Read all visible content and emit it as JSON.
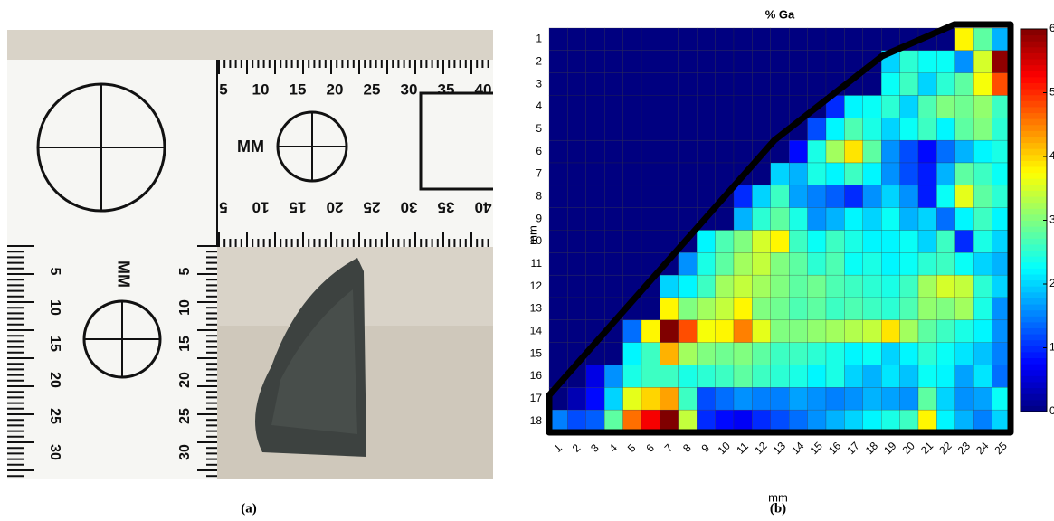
{
  "photo": {
    "top_scale": [
      "5",
      "10",
      "15",
      "20",
      "25",
      "30",
      "35",
      "40"
    ],
    "bottom_scale": [
      "5",
      "10",
      "15",
      "20",
      "25",
      "30",
      "35",
      "40"
    ],
    "left_scale": [
      "5",
      "10",
      "15",
      "20",
      "25",
      "30"
    ],
    "unit_labels": [
      "MM",
      "MM"
    ]
  },
  "chart_data": {
    "type": "heatmap",
    "title": "% Ga",
    "xlabel": "mm",
    "ylabel": "mm",
    "x": [
      1,
      2,
      3,
      4,
      5,
      6,
      7,
      8,
      9,
      10,
      11,
      12,
      13,
      14,
      15,
      16,
      17,
      18,
      19,
      20,
      21,
      22,
      23,
      24,
      25
    ],
    "y": [
      1,
      2,
      3,
      4,
      5,
      6,
      7,
      8,
      9,
      10,
      11,
      12,
      13,
      14,
      15,
      16,
      17,
      18
    ],
    "colormap": "jet",
    "clim": [
      0,
      6
    ],
    "cticks": [
      0,
      1,
      2,
      3,
      4,
      5,
      6
    ],
    "values": [
      [
        0,
        0,
        0,
        0,
        0,
        0,
        0,
        0,
        0,
        0,
        0,
        0,
        0,
        0,
        0,
        0,
        0,
        0,
        0,
        0,
        0,
        0,
        3.8,
        2.8,
        1.8
      ],
      [
        0,
        0,
        0,
        0,
        0,
        0,
        0,
        0,
        0,
        0,
        0,
        0,
        0,
        0,
        0,
        0,
        0,
        0,
        2.0,
        2.5,
        2.3,
        2.3,
        1.6,
        3.5,
        5.9
      ],
      [
        0,
        0,
        0,
        0,
        0,
        0,
        0,
        0,
        0,
        0,
        0,
        0,
        0,
        0,
        0,
        0,
        0,
        0,
        2.3,
        2.6,
        2.0,
        2.5,
        2.8,
        3.7,
        4.8
      ],
      [
        0,
        0,
        0,
        0,
        0,
        0,
        0,
        0,
        0,
        0,
        0,
        0,
        0,
        0,
        0,
        1.0,
        2.2,
        2.3,
        2.5,
        2.0,
        2.7,
        3.0,
        2.9,
        3.1,
        2.6
      ],
      [
        0,
        0,
        0,
        0,
        0,
        0,
        0,
        0,
        0,
        0,
        0,
        0,
        0,
        0,
        1.2,
        2.2,
        2.7,
        2.4,
        2.0,
        2.3,
        2.6,
        2.2,
        2.8,
        3.0,
        2.5
      ],
      [
        0,
        0,
        0,
        0,
        0,
        0,
        0,
        0,
        0,
        0,
        0,
        0,
        0,
        0.8,
        2.4,
        3.2,
        3.9,
        2.8,
        1.6,
        1.2,
        0.8,
        1.4,
        1.8,
        2.2,
        2.4
      ],
      [
        0,
        0,
        0,
        0,
        0,
        0,
        0,
        0,
        0,
        0,
        0,
        0,
        2.0,
        1.8,
        2.4,
        2.2,
        2.6,
        2.2,
        1.6,
        1.2,
        0.9,
        1.8,
        2.8,
        2.6,
        2.3
      ],
      [
        0,
        0,
        0,
        0,
        0,
        0,
        0,
        0,
        0,
        0,
        1.0,
        2.0,
        2.6,
        1.7,
        1.5,
        1.3,
        1.0,
        1.6,
        2.0,
        1.6,
        0.9,
        2.3,
        3.6,
        2.8,
        2.5
      ],
      [
        0,
        0,
        0,
        0,
        0,
        0,
        0,
        0,
        0,
        0,
        1.8,
        2.5,
        2.8,
        2.4,
        1.6,
        1.8,
        2.2,
        2.0,
        2.3,
        1.8,
        2.0,
        1.4,
        2.2,
        2.6,
        2.2
      ],
      [
        0,
        0,
        0,
        0,
        0,
        0,
        0,
        0,
        2.2,
        2.7,
        3.0,
        3.5,
        3.8,
        2.6,
        2.3,
        2.6,
        2.4,
        2.2,
        2.2,
        2.3,
        2.0,
        2.6,
        1.0,
        2.4,
        2.0
      ],
      [
        0,
        0,
        0,
        0,
        0,
        0,
        0,
        1.6,
        2.4,
        2.8,
        3.2,
        3.4,
        3.0,
        2.8,
        2.5,
        2.7,
        2.3,
        2.4,
        2.2,
        2.3,
        2.5,
        2.6,
        2.3,
        2.0,
        1.8
      ],
      [
        0,
        0,
        0,
        0,
        0,
        0,
        2.0,
        2.2,
        2.6,
        3.2,
        3.4,
        3.2,
        3.0,
        2.8,
        2.9,
        2.7,
        2.6,
        2.5,
        2.4,
        2.6,
        3.2,
        3.5,
        3.4,
        2.5,
        2.0
      ],
      [
        0,
        0,
        0,
        0,
        0,
        0,
        3.8,
        3.0,
        3.2,
        3.4,
        3.8,
        3.0,
        2.9,
        2.7,
        2.8,
        2.6,
        2.7,
        2.6,
        2.5,
        2.7,
        3.1,
        3.0,
        3.2,
        2.4,
        1.6
      ],
      [
        0,
        0,
        0,
        0,
        1.4,
        3.8,
        6.0,
        4.8,
        3.7,
        3.8,
        4.5,
        3.6,
        3.0,
        3.0,
        3.1,
        3.2,
        3.3,
        3.4,
        3.9,
        3.2,
        2.8,
        2.6,
        2.4,
        2.2,
        1.6
      ],
      [
        0,
        0,
        0,
        0,
        2.2,
        2.6,
        4.2,
        3.2,
        3.0,
        2.9,
        3.0,
        2.8,
        2.6,
        2.6,
        2.5,
        2.4,
        2.2,
        2.3,
        2.0,
        2.2,
        2.5,
        2.3,
        2.1,
        1.9,
        1.5
      ],
      [
        0,
        0,
        0.6,
        1.6,
        2.4,
        2.6,
        2.6,
        2.4,
        2.5,
        2.6,
        2.8,
        2.6,
        2.5,
        2.4,
        2.2,
        2.4,
        2.0,
        1.8,
        2.1,
        1.9,
        2.3,
        2.2,
        1.7,
        2.1,
        1.4
      ],
      [
        0,
        0.3,
        0.8,
        2.0,
        3.6,
        4.0,
        4.3,
        2.6,
        1.2,
        1.4,
        1.6,
        1.5,
        1.5,
        1.7,
        1.6,
        1.5,
        1.6,
        1.8,
        1.7,
        1.6,
        2.8,
        2.0,
        1.6,
        1.7,
        2.3
      ],
      [
        1.5,
        1.2,
        1.3,
        2.8,
        4.6,
        5.3,
        6.0,
        3.4,
        1.0,
        0.8,
        0.7,
        1.0,
        1.2,
        1.4,
        1.6,
        1.8,
        2.0,
        2.2,
        2.4,
        2.6,
        3.8,
        2.2,
        1.8,
        1.5,
        2.0
      ]
    ]
  },
  "captions": [
    "(a)",
    "(b)"
  ]
}
